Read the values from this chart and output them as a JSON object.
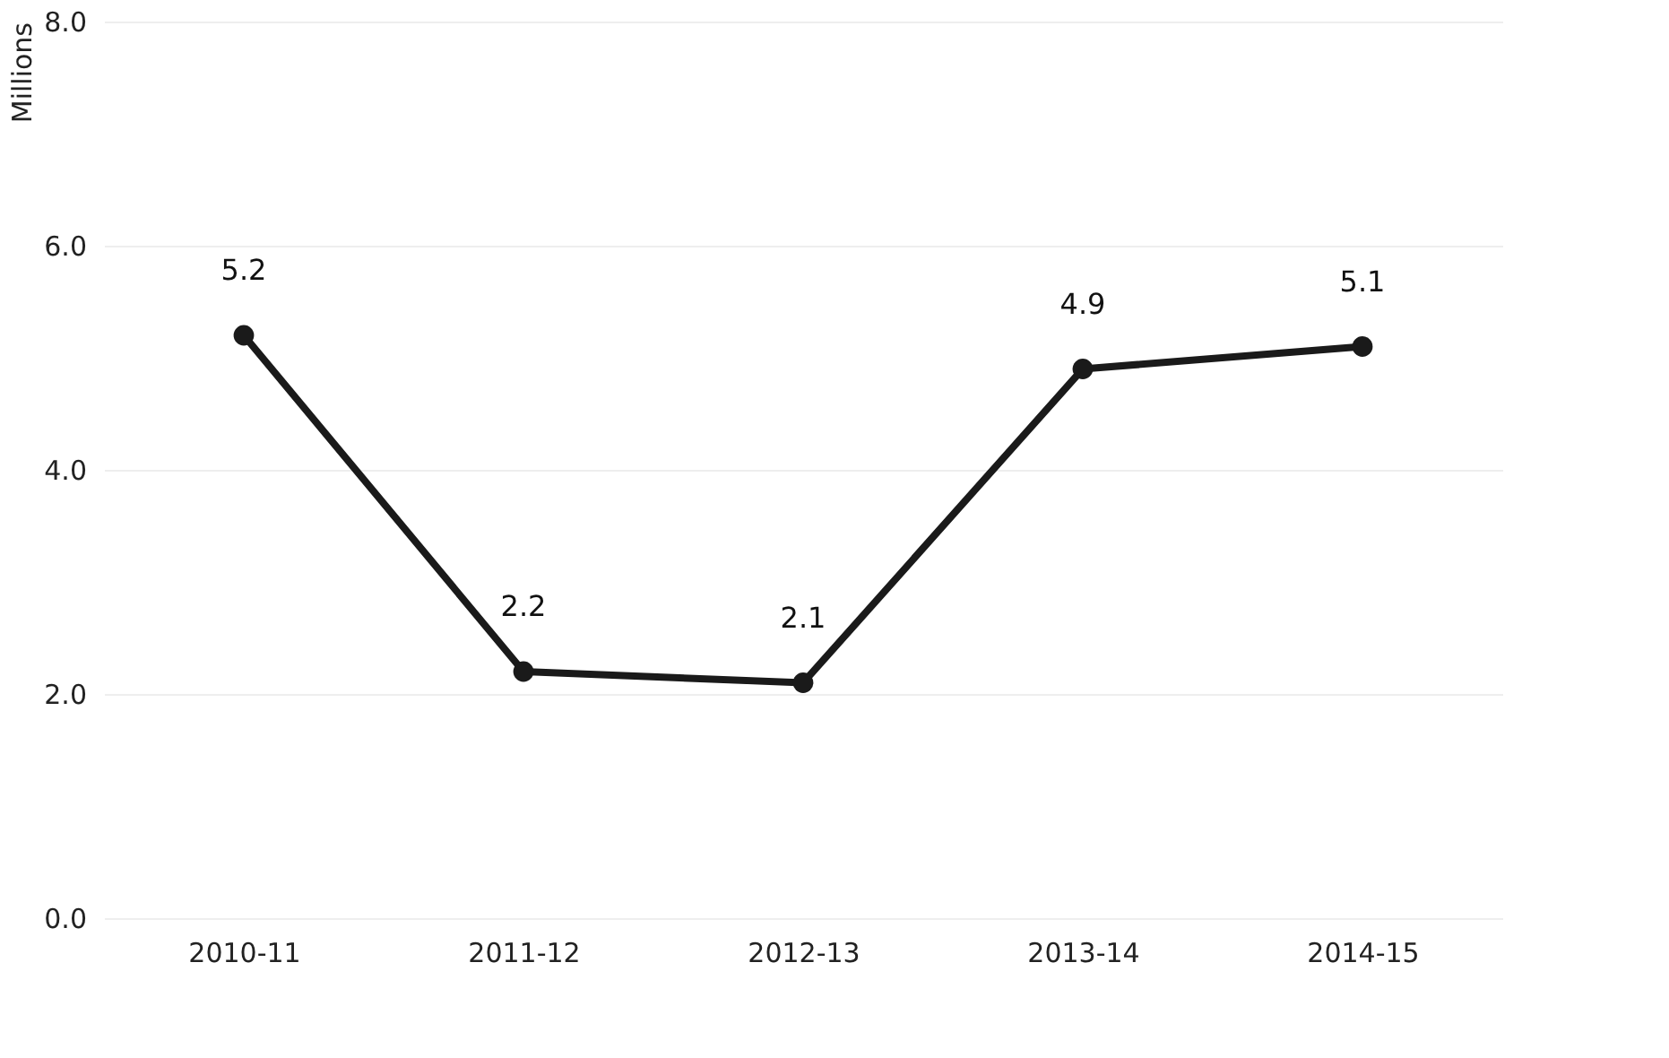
{
  "chart_data": {
    "type": "line",
    "ylabel": "Millions",
    "categories": [
      "2010-11",
      "2011-12",
      "2012-13",
      "2013-14",
      "2014-15"
    ],
    "series": [
      {
        "color": "#1a1a1a",
        "values": [
          5.2,
          2.2,
          2.1,
          4.9,
          5.1
        ]
      }
    ],
    "ylim": [
      0,
      8
    ],
    "yticks": [
      {
        "value": 0,
        "label": "0.0"
      },
      {
        "value": 2,
        "label": "2.0"
      },
      {
        "value": 4,
        "label": "4.0"
      },
      {
        "value": 6,
        "label": "6.0"
      },
      {
        "value": 8,
        "label": "8.0"
      }
    ],
    "grid": "y",
    "data_labels": true,
    "marker": "circle",
    "line_style": "solid"
  }
}
